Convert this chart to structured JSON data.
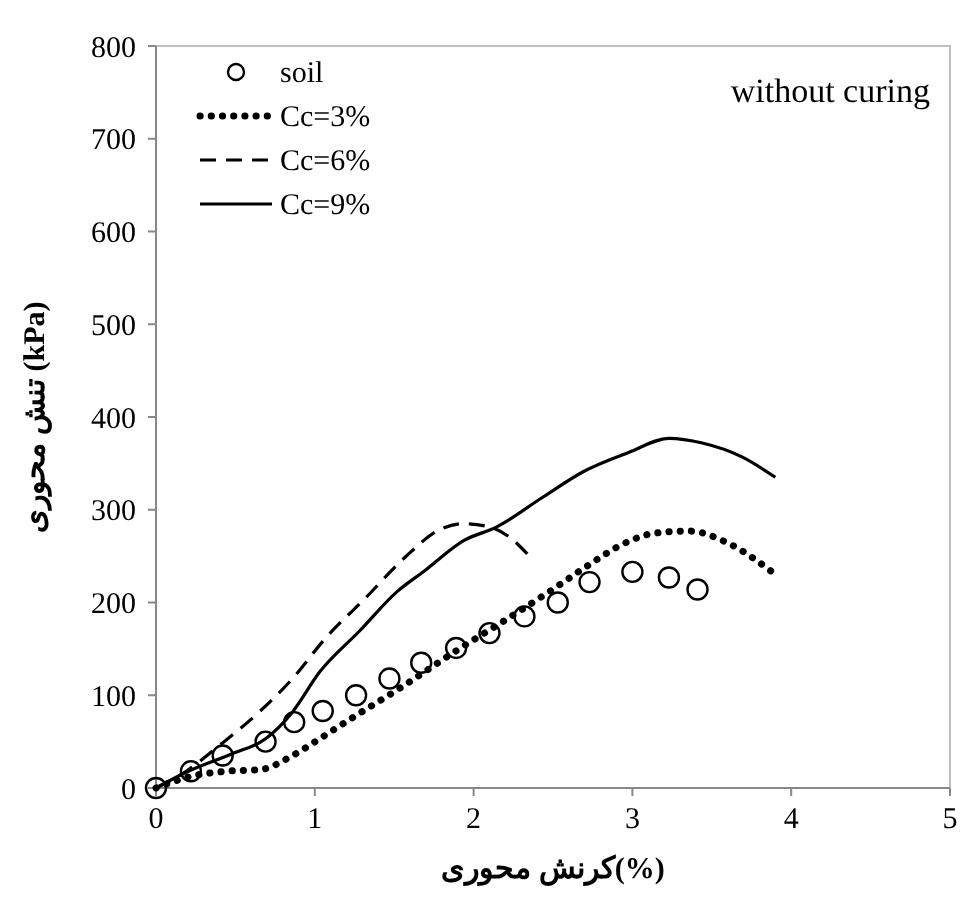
{
  "chart_data": {
    "type": "line",
    "xlabel": "کرنش محوری(%)",
    "ylabel": "تنش محوری (kPa)",
    "annotations": [
      "without curing"
    ],
    "xlim": [
      0,
      5
    ],
    "xticks": [
      0,
      1,
      2,
      3,
      4,
      5
    ],
    "ylim": [
      0,
      800
    ],
    "yticks": [
      0,
      100,
      200,
      300,
      400,
      500,
      600,
      700,
      800
    ],
    "grid": false,
    "legend": "top left",
    "series": [
      {
        "name": "soil",
        "type": "scatter",
        "marker": "circle",
        "color": "#000000",
        "x": [
          0,
          0.22,
          0.42,
          0.69,
          0.87,
          1.05,
          1.26,
          1.47,
          1.67,
          1.89,
          2.1,
          2.32,
          2.53,
          2.73,
          3.0,
          3.23,
          3.41
        ],
        "values": [
          0,
          18,
          35,
          50,
          71,
          83,
          100,
          118,
          135,
          151,
          167,
          185,
          200,
          222,
          233,
          227,
          214
        ]
      },
      {
        "name": "Cc=3%",
        "line_style": "dotted",
        "color": "#000000",
        "x": [
          0,
          0.23,
          0.44,
          0.66,
          0.86,
          1.03,
          1.23,
          1.53,
          1.9,
          2.19,
          2.48,
          2.73,
          2.94,
          3.15,
          3.36,
          3.59,
          3.88
        ],
        "values": [
          0,
          13,
          18,
          20,
          35,
          53,
          75,
          107,
          149,
          180,
          212,
          241,
          263,
          275,
          277,
          265,
          233
        ]
      },
      {
        "name": "Cc=6%",
        "line_style": "dashed",
        "color": "#000000",
        "x": [
          0,
          0.19,
          0.4,
          0.65,
          0.86,
          1.07,
          1.32,
          1.57,
          1.78,
          1.94,
          2.11,
          2.23,
          2.34
        ],
        "values": [
          0,
          18,
          46,
          82,
          118,
          162,
          205,
          249,
          278,
          285,
          281,
          270,
          252
        ]
      },
      {
        "name": "Cc=9%",
        "line_style": "solid",
        "color": "#000000",
        "x": [
          0,
          0.19,
          0.48,
          0.69,
          0.86,
          1.03,
          1.28,
          1.52,
          1.69,
          1.94,
          2.14,
          2.44,
          2.69,
          2.98,
          3.23,
          3.44,
          3.69,
          3.9
        ],
        "values": [
          0,
          17,
          37,
          53,
          82,
          125,
          169,
          212,
          234,
          267,
          281,
          314,
          341,
          362,
          377,
          372,
          357,
          335
        ]
      }
    ]
  }
}
